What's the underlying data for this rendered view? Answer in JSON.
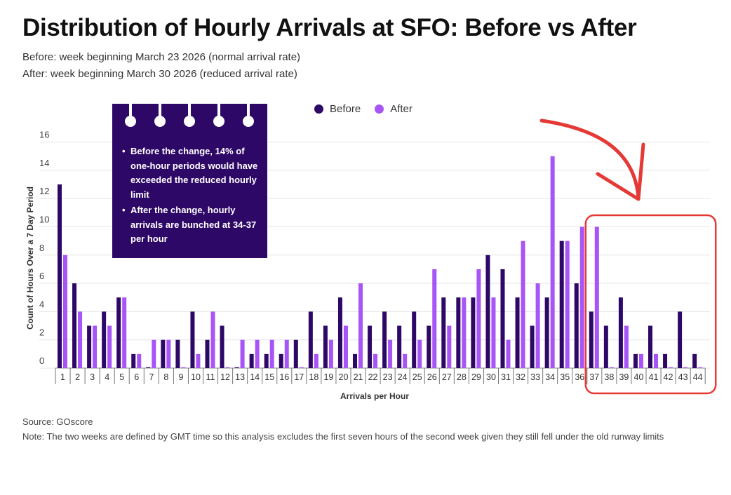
{
  "title": "Distribution of Hourly Arrivals at SFO: Before vs After",
  "subtitle_lines": [
    "Before: week beginning March 23 2026 (normal arrival rate)",
    "After: week beginning March 30 2026 (reduced arrival rate)"
  ],
  "annotation": {
    "bullets": [
      "Before the change, 14% of one-hour periods would have exceeded the reduced hourly limit",
      "After the change, hourly arrivals are bunched at 34-37 per hour"
    ]
  },
  "footer": {
    "source": "Source: GOscore",
    "note": "Note: The two weeks are defined by GMT time so this analysis excludes the first seven hours of the second week given they still fell under the old runway limits"
  },
  "colors": {
    "before": "#2e0866",
    "after": "#a855f7",
    "highlight": "#e53935",
    "annotation_bg": "#2e0866",
    "grid": "#e6e6e6"
  },
  "chart_data": {
    "type": "bar",
    "title": "Distribution of Hourly Arrivals at SFO: Before vs After",
    "xlabel": "Arrivals per Hour",
    "ylabel": "Count of Hours Over a 7 Day Period",
    "ylim": [
      0,
      17
    ],
    "yticks": [
      0,
      2,
      4,
      6,
      8,
      10,
      12,
      14,
      16
    ],
    "grid": true,
    "legend_position": "top",
    "categories": [
      "1",
      "2",
      "3",
      "4",
      "5",
      "6",
      "7",
      "8",
      "9",
      "10",
      "11",
      "12",
      "13",
      "14",
      "15",
      "16",
      "17",
      "18",
      "19",
      "20",
      "21",
      "22",
      "23",
      "24",
      "25",
      "26",
      "27",
      "28",
      "29",
      "30",
      "31",
      "32",
      "33",
      "34",
      "35",
      "36",
      "37",
      "38",
      "39",
      "40",
      "41",
      "42",
      "43",
      "44"
    ],
    "series": [
      {
        "name": "Before",
        "values": [
          13,
          6,
          3,
          4,
          5,
          1,
          0,
          2,
          2,
          4,
          2,
          3,
          0,
          1,
          1,
          1,
          2,
          4,
          3,
          5,
          1,
          3,
          4,
          3,
          4,
          3,
          5,
          5,
          5,
          8,
          7,
          5,
          3,
          5,
          9,
          6,
          4,
          3,
          5,
          1,
          3,
          1,
          4,
          1
        ]
      },
      {
        "name": "After",
        "values": [
          8,
          4,
          3,
          3,
          5,
          1,
          2,
          2,
          0,
          1,
          4,
          0,
          2,
          2,
          2,
          2,
          0,
          1,
          2,
          3,
          6,
          1,
          2,
          1,
          2,
          7,
          3,
          5,
          7,
          5,
          2,
          9,
          6,
          15,
          9,
          10,
          10,
          0,
          3,
          1,
          1,
          0,
          0,
          0
        ]
      }
    ],
    "highlight_range": [
      "37",
      "44"
    ]
  }
}
